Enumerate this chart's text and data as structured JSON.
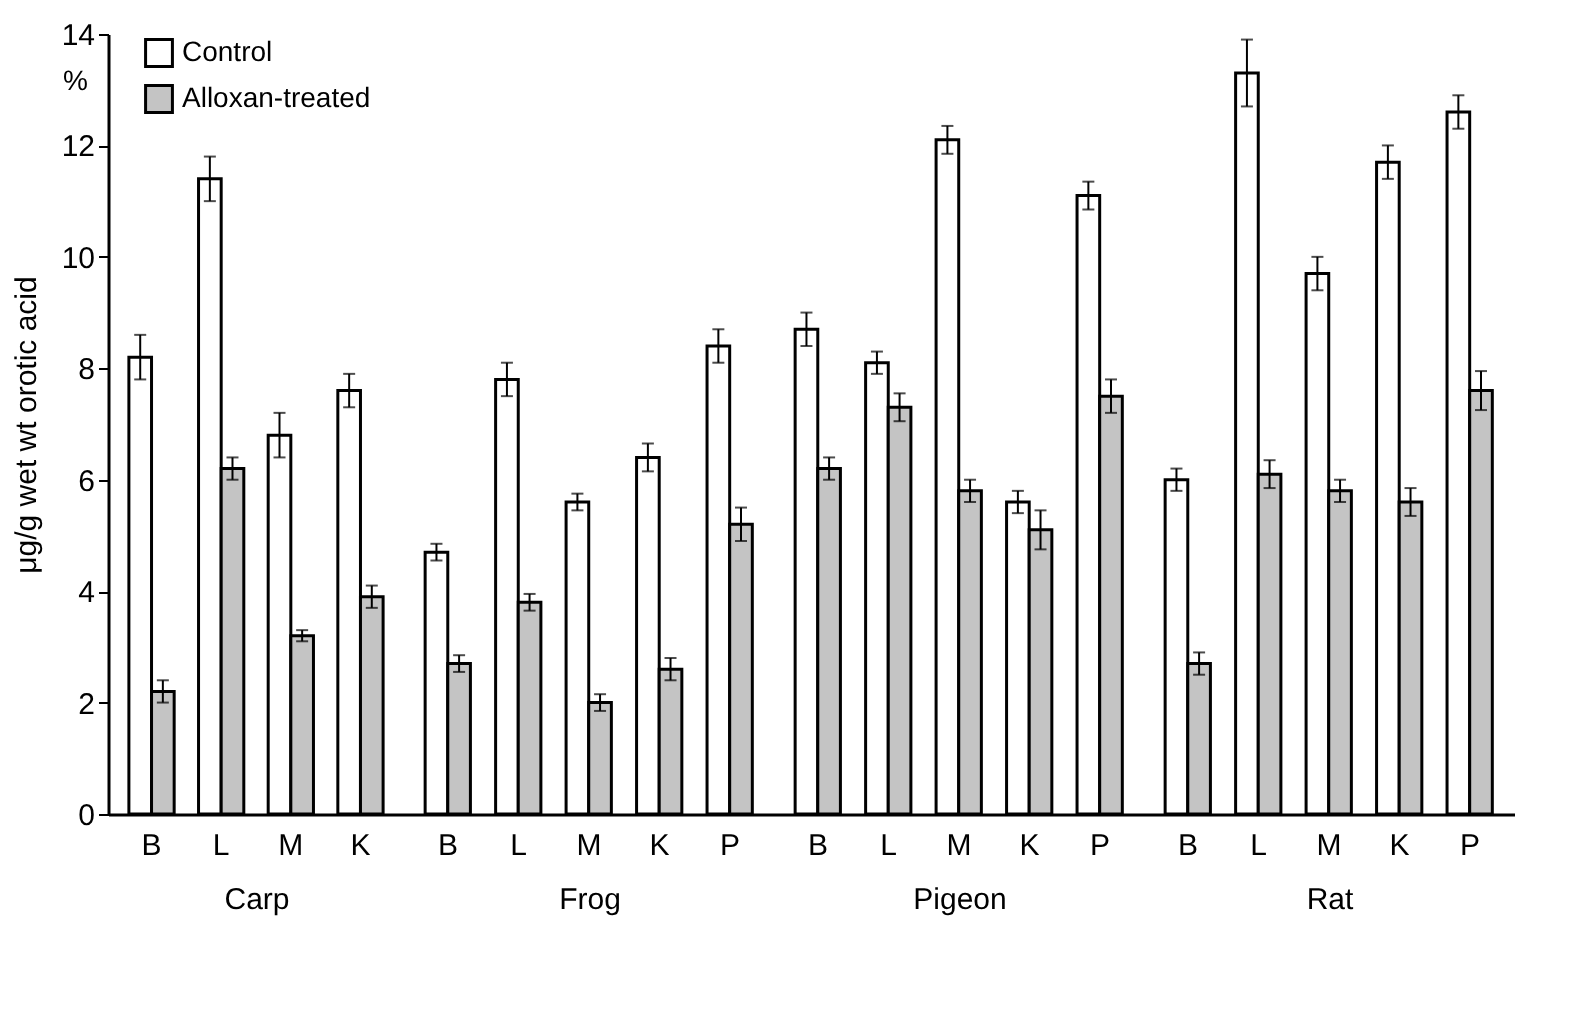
{
  "chart_data": [
    {
      "type": "bar",
      "ylabel": "μg/g wet wt orotic acid",
      "xlabel": "Carp",
      "categories": [
        "B",
        "L",
        "M",
        "K"
      ],
      "ylim": [
        0,
        14
      ],
      "yticks": [
        0,
        2,
        4,
        6,
        8,
        10,
        12,
        14
      ],
      "grid": false,
      "legend": "top right",
      "annotations": [
        "%"
      ],
      "series": [
        {
          "name": "Control",
          "color": "#ffffff",
          "values": [
            8.2,
            11.4,
            6.8,
            7.6
          ],
          "errors": [
            0.4,
            0.4,
            0.4,
            0.3
          ]
        },
        {
          "name": "Alloxan-treated",
          "color": "#c4c4c4",
          "values": [
            2.2,
            6.2,
            3.2,
            3.9
          ],
          "errors": [
            0.2,
            0.2,
            0.1,
            0.2
          ]
        }
      ]
    },
    {
      "type": "bar",
      "xlabel": "Frog",
      "categories": [
        "B",
        "L",
        "M",
        "K",
        "P"
      ],
      "ylim": [
        0,
        14
      ],
      "grid": false,
      "tick_labels": "x",
      "series": [
        {
          "color": "#ffffff",
          "values": [
            4.7,
            7.8,
            5.6,
            6.4,
            8.4
          ],
          "errors": [
            0.15,
            0.3,
            0.15,
            0.25,
            0.3
          ]
        },
        {
          "color": "#c4c4c4",
          "values": [
            2.7,
            3.8,
            2.0,
            2.6,
            5.2
          ],
          "errors": [
            0.15,
            0.15,
            0.15,
            0.2,
            0.3
          ]
        }
      ]
    },
    {
      "type": "bar",
      "xlabel": "Pigeon",
      "categories": [
        "B",
        "L",
        "M",
        "K",
        "P"
      ],
      "ylim": [
        0,
        14
      ],
      "grid": false,
      "tick_labels": "x",
      "series": [
        {
          "color": "#ffffff",
          "values": [
            8.7,
            8.1,
            12.1,
            5.6,
            11.1
          ],
          "errors": [
            0.3,
            0.2,
            0.25,
            0.2,
            0.25
          ]
        },
        {
          "color": "#c4c4c4",
          "values": [
            6.2,
            7.3,
            5.8,
            5.1,
            7.5
          ],
          "errors": [
            0.2,
            0.25,
            0.2,
            0.35,
            0.3
          ]
        }
      ]
    },
    {
      "type": "bar",
      "xlabel": "Rat",
      "categories": [
        "B",
        "L",
        "M",
        "K",
        "P"
      ],
      "ylim": [
        0,
        14
      ],
      "grid": false,
      "tick_labels": "x",
      "series": [
        {
          "color": "#ffffff",
          "values": [
            6.0,
            13.3,
            9.7,
            11.7,
            12.6
          ],
          "errors": [
            0.2,
            0.6,
            0.3,
            0.3,
            0.3
          ]
        },
        {
          "color": "#c4c4c4",
          "values": [
            2.7,
            6.1,
            5.8,
            5.6,
            7.6
          ],
          "errors": [
            0.2,
            0.25,
            0.2,
            0.25,
            0.35
          ]
        }
      ]
    }
  ]
}
